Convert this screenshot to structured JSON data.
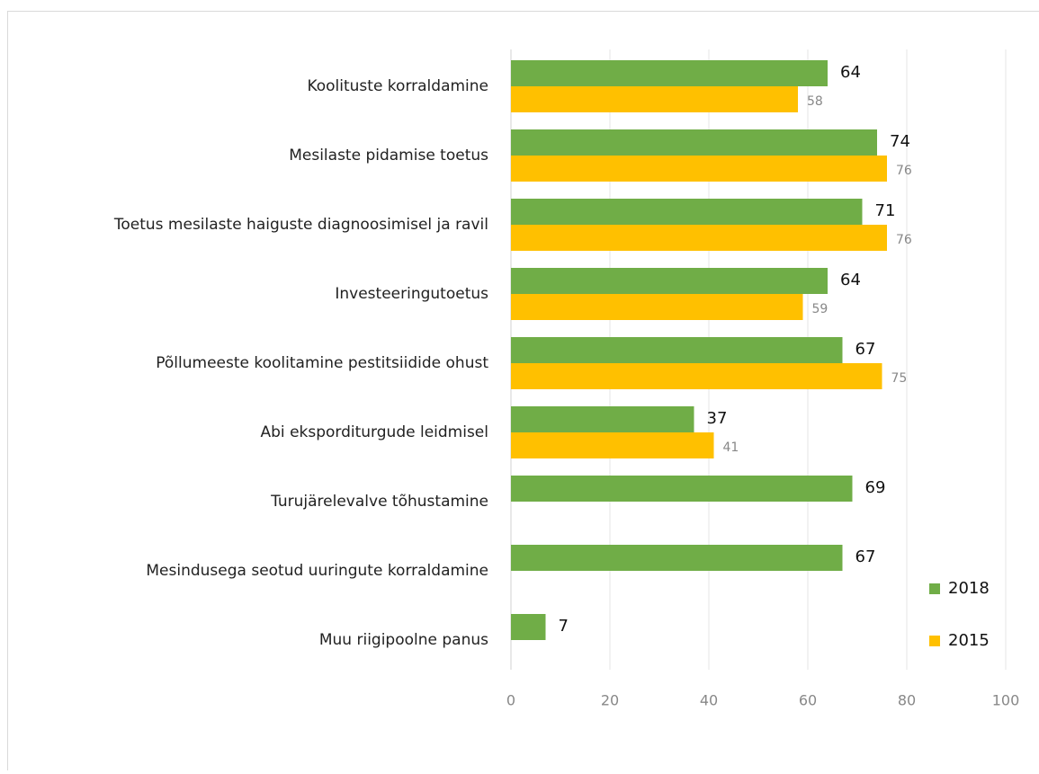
{
  "chart_data": {
    "type": "bar",
    "orientation": "horizontal",
    "categories": [
      "Koolituste korraldamine",
      "Mesilaste pidamise toetus",
      "Toetus mesilaste haiguste diagnoosimisel ja ravil",
      "Investeeringutoetus",
      "Põllumeeste koolitamine pestitsiidide ohust",
      "Abi eksporditurgude leidmisel",
      "Turujärelevalve tõhustamine",
      "Mesindusega seotud uuringute korraldamine",
      "Muu riigipoolne panus"
    ],
    "series": [
      {
        "name": "2018",
        "color": "#70ad47",
        "values": [
          64,
          74,
          71,
          64,
          67,
          37,
          69,
          67,
          7
        ]
      },
      {
        "name": "2015",
        "color": "#ffc000",
        "values": [
          58,
          76,
          76,
          59,
          75,
          41,
          null,
          null,
          null
        ]
      }
    ],
    "xlim": [
      0,
      100
    ],
    "xticks": [
      0,
      20,
      40,
      60,
      80,
      100
    ],
    "grid": true,
    "legend": "right"
  }
}
